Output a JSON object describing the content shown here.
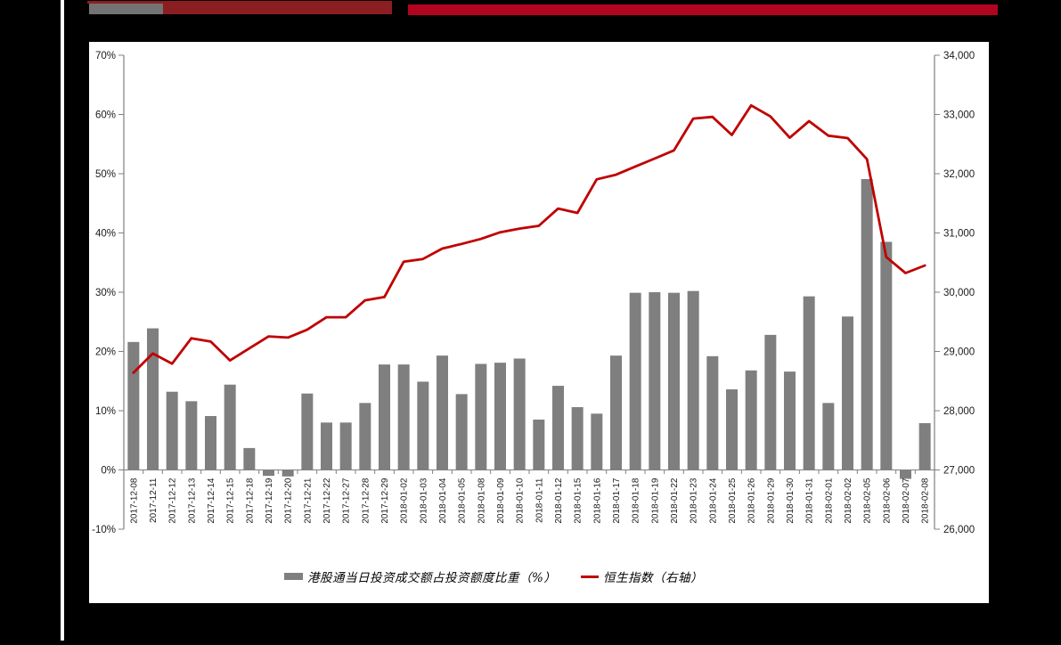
{
  "page": {
    "background_color": "#000000",
    "panel_color": "#ffffff",
    "stripe_color": "#ffffff"
  },
  "decorations": {
    "top_gray_bar_color": "#737373",
    "top_maroon_bar_color": "#8b1e20",
    "top_crimson_bar_color": "#b00420"
  },
  "chart_data": {
    "type": "bar",
    "subtype": "dual-axis bar + line",
    "title": "",
    "xlabel": "",
    "ylabel_left": "",
    "ylabel_right": "",
    "grid": false,
    "legend_position": "bottom",
    "categories": [
      "2017-12-08",
      "2017-12-11",
      "2017-12-12",
      "2017-12-13",
      "2017-12-14",
      "2017-12-15",
      "2017-12-18",
      "2017-12-19",
      "2017-12-20",
      "2017-12-21",
      "2017-12-22",
      "2017-12-27",
      "2017-12-28",
      "2017-12-29",
      "2018-01-02",
      "2018-01-03",
      "2018-01-04",
      "2018-01-05",
      "2018-01-08",
      "2018-01-09",
      "2018-01-10",
      "2018-01-11",
      "2018-01-12",
      "2018-01-15",
      "2018-01-16",
      "2018-01-17",
      "2018-01-18",
      "2018-01-19",
      "2018-01-22",
      "2018-01-23",
      "2018-01-24",
      "2018-01-25",
      "2018-01-26",
      "2018-01-29",
      "2018-01-30",
      "2018-01-31",
      "2018-02-01",
      "2018-02-02",
      "2018-02-05",
      "2018-02-06",
      "2018-02-07",
      "2018-02-08"
    ],
    "series": [
      {
        "name": "港股通当日投资成交额占投资额度比重（%）",
        "type": "bar",
        "axis": "left",
        "color": "#7f7f7f",
        "values": [
          21.6,
          23.9,
          13.2,
          11.6,
          9.1,
          14.4,
          3.7,
          -1.0,
          -1.1,
          12.9,
          8.0,
          8.0,
          11.3,
          17.8,
          17.8,
          14.9,
          19.3,
          12.8,
          17.9,
          18.1,
          18.8,
          8.5,
          14.2,
          10.6,
          9.5,
          19.3,
          29.9,
          30.0,
          29.9,
          30.2,
          19.2,
          13.6,
          16.8,
          22.8,
          16.6,
          29.3,
          11.3,
          25.9,
          49.1,
          38.5,
          -1.5,
          7.9
        ]
      },
      {
        "name": "恒生指数（右轴）",
        "type": "line",
        "axis": "right",
        "color": "#c00000",
        "values": [
          28639.85,
          28965.29,
          28793.88,
          29222.1,
          29166.38,
          28848.11,
          29050.41,
          29253.66,
          29234.09,
          29367.06,
          29578.01,
          29578.01,
          29863.71,
          29919.15,
          30515.31,
          30560.95,
          30736.48,
          30814.64,
          30899.53,
          31011.41,
          31073.72,
          31120.39,
          31412.54,
          31338.87,
          31904.75,
          31983.41,
          32121.94,
          32254.89,
          32393.41,
          32930.66,
          32958.69,
          32654.45,
          33154.12,
          32966.89,
          32607.29,
          32887.27,
          32642.09,
          32601.78,
          32245.22,
          30595.42,
          30323.2,
          30451.27
        ]
      }
    ],
    "left_axis": {
      "min": -10,
      "max": 70,
      "step": 10,
      "unit": "%",
      "tick_labels": [
        "70%",
        "60%",
        "50%",
        "40%",
        "30%",
        "20%",
        "10%",
        "0%",
        "-10%"
      ]
    },
    "right_axis": {
      "min": 26000,
      "max": 34000,
      "step": 1000,
      "tick_labels": [
        "34,000",
        "33,000",
        "32,000",
        "31,000",
        "30,000",
        "29,000",
        "28,000",
        "27,000",
        "26,000"
      ]
    },
    "axis_line_color": "#808080",
    "axis_text_color": "#1a1a1a"
  },
  "legend": {
    "bar_label": "港股通当日投资成交额占投资额度比重（%）",
    "line_label": "恒生指数（右轴）"
  }
}
